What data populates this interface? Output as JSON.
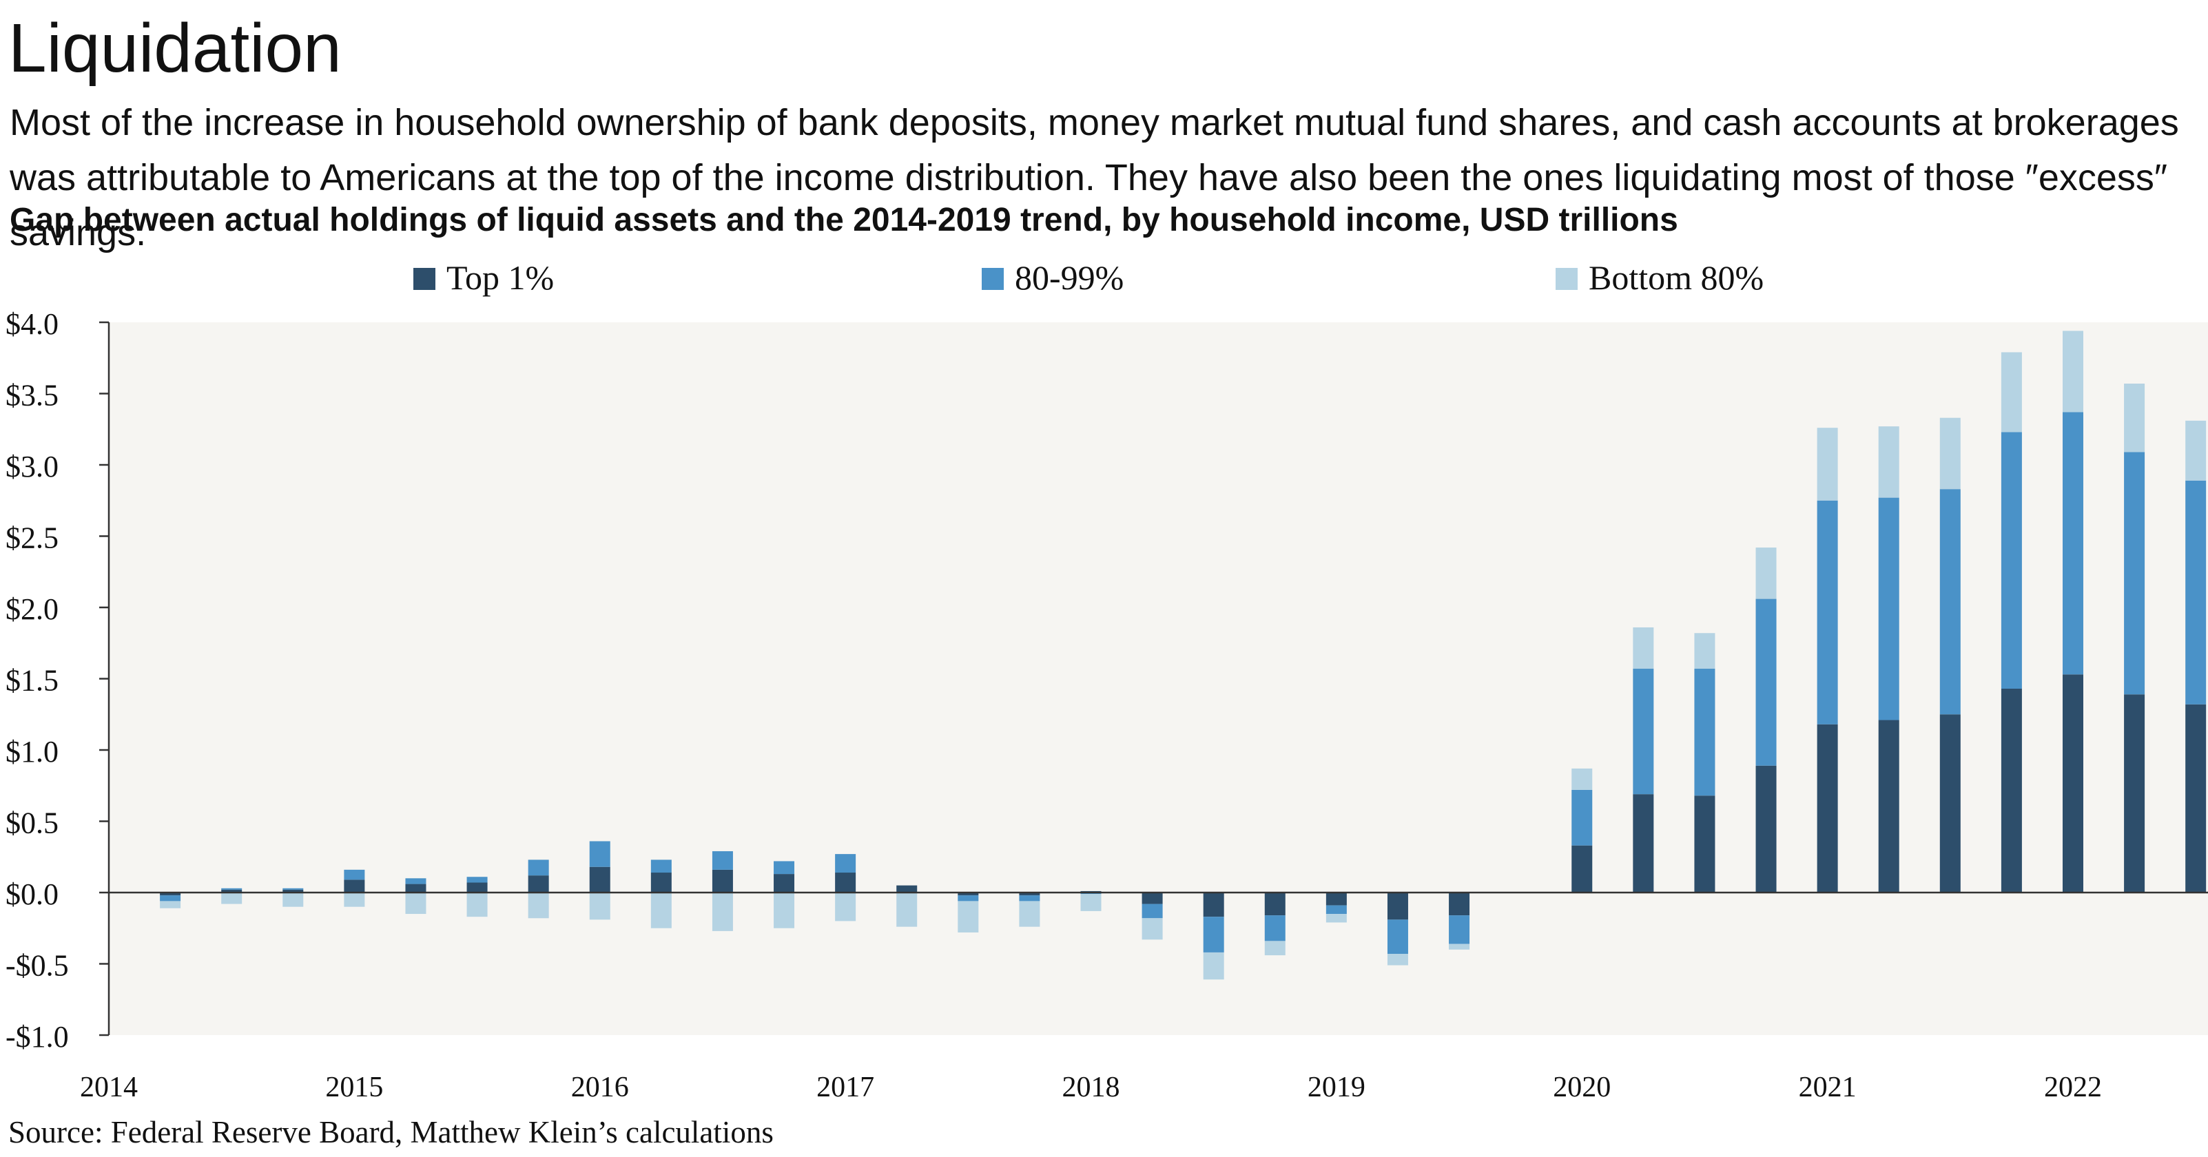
{
  "title": "Liquidation",
  "subtitle": "Most of the increase in household ownership of bank deposits, money market mutual fund shares, and cash accounts at brokerages was attributable to Americans at the top of the income distribution. They have also been the ones liquidating most of those ″excess″ savings.",
  "heading": "Gap between actual holdings of liquid assets and the 2014-2019 trend, by household income, USD trillions",
  "source": "Source: Federal Reserve Board, Matthew Klein’s calculations",
  "colors": {
    "top1": "#2d4e6b",
    "p80_99": "#4a92c8",
    "bottom80": "#b5d3e3",
    "plot_bg": "#f6f5f2",
    "axis": "#333333"
  },
  "chart_data": {
    "type": "bar",
    "stacked": true,
    "legend_position": "top",
    "grid": false,
    "ylim": [
      -1.0,
      4.0
    ],
    "yticks": [
      -1.0,
      -0.5,
      0.0,
      0.5,
      1.0,
      1.5,
      2.0,
      2.5,
      3.0,
      3.5,
      4.0
    ],
    "ytick_labels": [
      "-$1.0",
      "-$0.5",
      "$0.0",
      "$0.5",
      "$1.0",
      "$1.5",
      "$2.0",
      "$2.5",
      "$3.0",
      "$3.5",
      "$4.0"
    ],
    "xlim": [
      2014.0,
      2022.55
    ],
    "xtick_labels": [
      "2014",
      "2015",
      "2016",
      "2017",
      "2018",
      "2019",
      "2020",
      "2021",
      "2022"
    ],
    "x": [
      2014.25,
      2014.5,
      2014.75,
      2015.0,
      2015.25,
      2015.5,
      2015.75,
      2016.0,
      2016.25,
      2016.5,
      2016.75,
      2017.0,
      2017.25,
      2017.5,
      2017.75,
      2018.0,
      2018.25,
      2018.5,
      2018.75,
      2019.0,
      2019.25,
      2019.5,
      2019.75,
      2020.0,
      2020.25,
      2020.5,
      2020.75,
      2021.0,
      2021.25,
      2021.5,
      2021.75,
      2022.0,
      2022.25,
      2022.5
    ],
    "series": [
      {
        "name": "Top 1%",
        "color_key": "top1",
        "values": [
          -0.02,
          0.02,
          0.02,
          0.09,
          0.06,
          0.07,
          0.12,
          0.18,
          0.14,
          0.16,
          0.13,
          0.14,
          0.05,
          -0.02,
          -0.02,
          0.01,
          -0.08,
          -0.17,
          -0.16,
          -0.09,
          -0.19,
          -0.16,
          null,
          0.33,
          0.69,
          0.68,
          0.89,
          1.18,
          1.21,
          1.25,
          1.43,
          1.53,
          1.39,
          1.32
        ]
      },
      {
        "name": "80-99%",
        "color_key": "p80_99",
        "values": [
          -0.04,
          0.01,
          0.01,
          0.07,
          0.04,
          0.04,
          0.11,
          0.18,
          0.09,
          0.13,
          0.09,
          0.13,
          0.0,
          -0.04,
          -0.04,
          -0.01,
          -0.1,
          -0.25,
          -0.18,
          -0.06,
          -0.24,
          -0.2,
          null,
          0.39,
          0.88,
          0.89,
          1.17,
          1.57,
          1.56,
          1.58,
          1.8,
          1.84,
          1.7,
          1.57
        ]
      },
      {
        "name": "Bottom 80%",
        "color_key": "bottom80",
        "values": [
          -0.05,
          -0.08,
          -0.1,
          -0.1,
          -0.15,
          -0.17,
          -0.18,
          -0.19,
          -0.25,
          -0.27,
          -0.25,
          -0.2,
          -0.24,
          -0.22,
          -0.18,
          -0.12,
          -0.15,
          -0.19,
          -0.1,
          -0.06,
          -0.08,
          -0.04,
          null,
          0.15,
          0.29,
          0.25,
          0.36,
          0.51,
          0.5,
          0.5,
          0.56,
          0.57,
          0.48,
          0.42
        ]
      }
    ]
  }
}
